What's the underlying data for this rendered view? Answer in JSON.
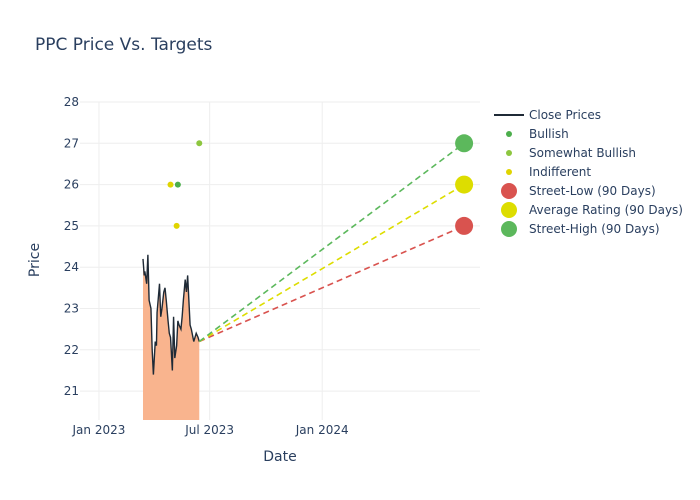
{
  "chart_data": {
    "type": "line",
    "title": "PPC Price Vs. Targets",
    "xlabel": "Date",
    "ylabel": "Price",
    "ylim": [
      20.3,
      28
    ],
    "xlim": [
      "2022-12-01",
      "2024-09-15"
    ],
    "y_ticks": [
      "21",
      "22",
      "23",
      "24",
      "25",
      "26",
      "27",
      "28"
    ],
    "x_ticks": [
      {
        "label": "Jan 2023",
        "date": "2023-01-01"
      },
      {
        "label": "Jul 2023",
        "date": "2023-07-01"
      },
      {
        "label": "Jan 2024",
        "date": "2024-01-01"
      }
    ],
    "grid": true,
    "legend_position": "right",
    "close_prices": {
      "name": "Close Prices",
      "color": "#1f2a36",
      "fill_color": "#f9b48e",
      "x": [
        "2023-03-14",
        "2023-03-16",
        "2023-03-17",
        "2023-03-20",
        "2023-03-22",
        "2023-03-24",
        "2023-03-27",
        "2023-03-29",
        "2023-03-31",
        "2023-04-03",
        "2023-04-05",
        "2023-04-06",
        "2023-04-10",
        "2023-04-12",
        "2023-04-14",
        "2023-04-17",
        "2023-04-19",
        "2023-04-21",
        "2023-04-24",
        "2023-04-26",
        "2023-04-28",
        "2023-05-01",
        "2023-05-03",
        "2023-05-05",
        "2023-05-08",
        "2023-05-10",
        "2023-05-12",
        "2023-05-15",
        "2023-05-17",
        "2023-05-19",
        "2023-05-22",
        "2023-05-24",
        "2023-05-26",
        "2023-05-30",
        "2023-06-01",
        "2023-06-05",
        "2023-06-07",
        "2023-06-09",
        "2023-06-12",
        "2023-06-14"
      ],
      "values": [
        24.2,
        23.8,
        23.9,
        23.6,
        24.3,
        23.2,
        23.0,
        22.0,
        21.4,
        22.2,
        22.1,
        22.9,
        23.6,
        22.8,
        23.0,
        23.4,
        23.5,
        23.2,
        22.7,
        22.4,
        22.3,
        21.5,
        22.8,
        21.8,
        22.1,
        22.7,
        22.6,
        22.5,
        22.8,
        23.2,
        23.7,
        23.4,
        23.8,
        22.6,
        22.5,
        22.2,
        22.3,
        22.4,
        22.3,
        22.2
      ]
    },
    "rating_points": [
      {
        "name": "Bullish",
        "color": "#4cae4c",
        "x": "2023-05-10",
        "y": 26
      },
      {
        "name": "Somewhat Bullish",
        "color": "#8dc63f",
        "x": "2023-06-14",
        "y": 27
      },
      {
        "name": "Indifferent",
        "color": "#e0d400",
        "x": "2023-04-28",
        "y": 26
      },
      {
        "name": "Indifferent",
        "color": "#e0d400",
        "x": "2023-05-08",
        "y": 25
      }
    ],
    "targets": {
      "start": {
        "x": "2023-06-14",
        "y": 22.2
      },
      "end_x": "2024-08-20",
      "series": [
        {
          "name": "Street-Low (90 Days)",
          "color": "#d9534f",
          "y": 25
        },
        {
          "name": "Average Rating (90 Days)",
          "color": "#dddd00",
          "y": 26
        },
        {
          "name": "Street-High (90 Days)",
          "color": "#5cb85c",
          "y": 27
        }
      ]
    },
    "legend": [
      {
        "label": "Close Prices",
        "kind": "line",
        "color": "#1f2a36"
      },
      {
        "label": "Bullish",
        "kind": "dot",
        "color": "#4cae4c"
      },
      {
        "label": "Somewhat Bullish",
        "kind": "dot",
        "color": "#8dc63f"
      },
      {
        "label": "Indifferent",
        "kind": "dot",
        "color": "#e0d400"
      },
      {
        "label": "Street-Low (90 Days)",
        "kind": "bigdot",
        "color": "#d9534f"
      },
      {
        "label": "Average Rating (90 Days)",
        "kind": "bigdot",
        "color": "#dddd00"
      },
      {
        "label": "Street-High (90 Days)",
        "kind": "bigdot",
        "color": "#5cb85c"
      }
    ]
  }
}
